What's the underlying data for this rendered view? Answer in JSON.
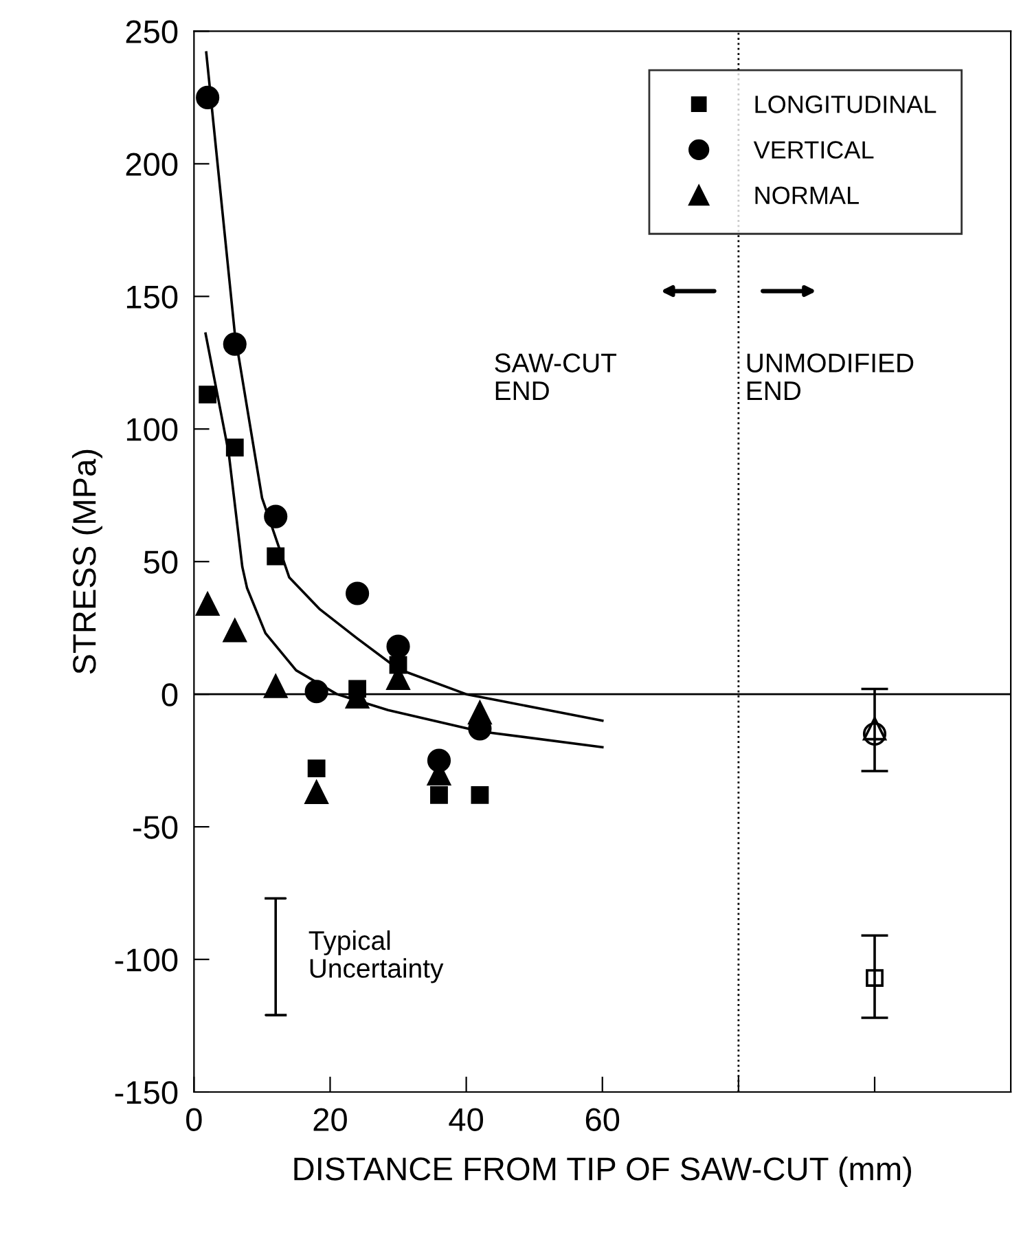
{
  "chart_data": {
    "type": "scatter",
    "xlabel": "DISTANCE FROM TIP OF SAW-CUT (mm)",
    "ylabel": "STRESS (MPa)",
    "xlim": [
      0,
      120
    ],
    "ylim": [
      -150,
      250
    ],
    "xticks": [
      0,
      20,
      40,
      60,
      {
        "value": 80,
        "label": null
      },
      {
        "value": 100,
        "label": null
      }
    ],
    "yticks": [
      -150,
      -100,
      -50,
      0,
      50,
      100,
      150,
      200,
      250
    ],
    "grid": false,
    "legend": "top right",
    "series": [
      {
        "name": "LONGITUDINAL",
        "color": "#000000",
        "marker": "square",
        "x": [
          2,
          6,
          12,
          18,
          24,
          30,
          36,
          42
        ],
        "values": [
          113,
          93,
          52,
          -28,
          2,
          11,
          -38,
          -38
        ]
      },
      {
        "name": "VERTICAL",
        "color": "#000000",
        "marker": "circle",
        "x": [
          2,
          6,
          12,
          18,
          24,
          30,
          36,
          42
        ],
        "values": [
          225,
          132,
          67,
          1,
          38,
          18,
          -25,
          -13
        ]
      },
      {
        "name": "NORMAL",
        "color": "#000000",
        "marker": "triangle",
        "x": [
          2,
          6,
          12,
          18,
          24,
          30,
          36,
          42
        ],
        "values": [
          34,
          24,
          3,
          -37,
          -1,
          6,
          -30,
          -7
        ]
      },
      {
        "color": "#000000",
        "marker": "square",
        "x": [
          100
        ],
        "values": [
          -107
        ],
        "errors": [
          [
            -122,
            -91
          ]
        ]
      },
      {
        "color": "#000000",
        "marker": "circle",
        "x": [
          100
        ],
        "values": [
          -15
        ],
        "errors": [
          [
            -29,
            2
          ]
        ]
      },
      {
        "color": "#000000",
        "marker": "triangle",
        "x": [
          100
        ],
        "values": [
          -13
        ]
      },
      {
        "type": "line",
        "color": "#000000",
        "marker": "none",
        "line_style": "solid",
        "x": [
          1.8,
          6,
          10,
          14,
          18.5,
          24,
          30,
          40,
          52,
          60
        ],
        "values": [
          242,
          136,
          74,
          44,
          32,
          21,
          9.5,
          0,
          -6,
          -10
        ]
      },
      {
        "type": "line",
        "color": "#000000",
        "marker": "none",
        "line_style": "solid",
        "x": [
          1.7,
          5.1,
          7.1,
          7.8,
          10.5,
          15,
          21,
          28.5,
          42,
          60
        ],
        "values": [
          136,
          91,
          48,
          40,
          23,
          9,
          0,
          -6,
          -14,
          -20
        ]
      }
    ],
    "ref_lines": [
      {
        "axis": "y",
        "value": 0,
        "color": "#000000",
        "line_style": "solid"
      },
      {
        "axis": "x",
        "value": 80,
        "color": "#000000",
        "line_style": "dotted"
      }
    ],
    "annotations": [
      "SAW-CUT\nEND",
      "UNMODIFIED\nEND",
      "Typical\nUncertainty"
    ]
  }
}
